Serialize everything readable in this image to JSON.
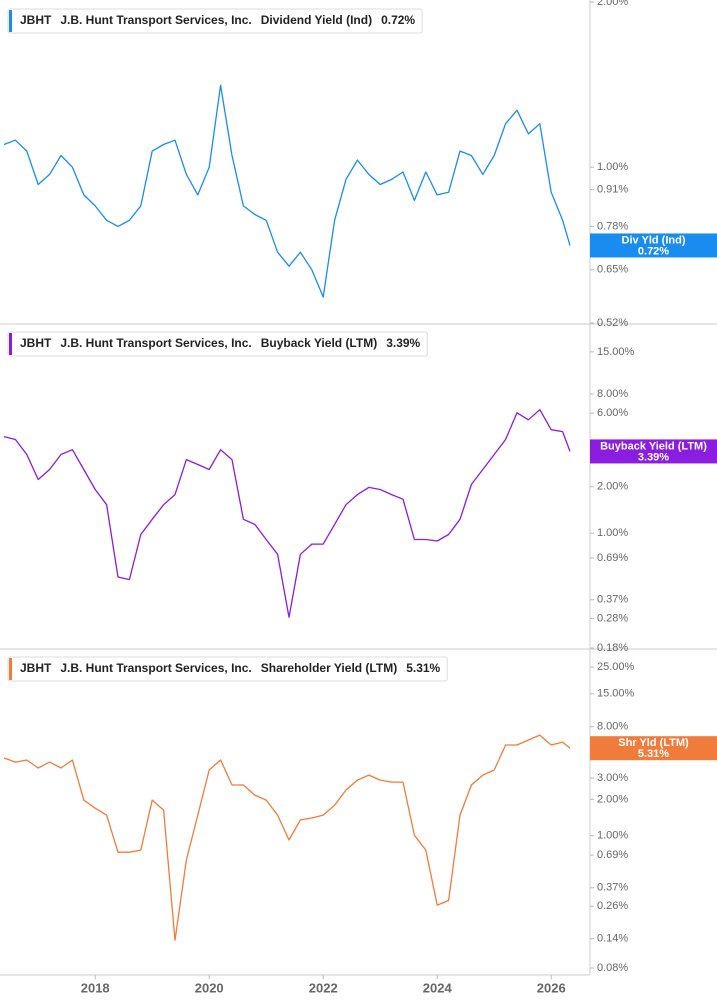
{
  "chart_data": [
    {
      "type": "line",
      "ticker": "JBHT",
      "company": "J.B. Hunt Transport Services, Inc.",
      "log_scale": true,
      "x": [
        2016.4,
        2016.6,
        2016.8,
        2017,
        2017.2,
        2017.4,
        2017.6,
        2017.8,
        2018,
        2018.2,
        2018.4,
        2018.6,
        2018.8,
        2019,
        2019.2,
        2019.4,
        2019.6,
        2019.8,
        2020,
        2020.2,
        2020.4,
        2020.6,
        2020.8,
        2021,
        2021.2,
        2021.4,
        2021.6,
        2021.8,
        2022,
        2022.2,
        2022.4,
        2022.6,
        2022.8,
        2023,
        2023.2,
        2023.4,
        2023.6,
        2023.8,
        2024,
        2024.2,
        2024.4,
        2024.6,
        2024.8,
        2025,
        2025.2,
        2025.4,
        2025.6,
        2025.8,
        2026,
        2026.2,
        2026.33
      ],
      "xlim": [
        2016.33,
        2026.68
      ],
      "ylim": [
        0.52,
        2.0
      ],
      "yticks": [
        {
          "value": 2,
          "label": "2.00%"
        },
        {
          "value": 1,
          "label": "1.00%"
        },
        {
          "value": 0.91,
          "label": "0.91%"
        },
        {
          "value": 0.78,
          "label": "0.78%"
        },
        {
          "value": 0.65,
          "label": "0.65%"
        },
        {
          "value": 0.52,
          "label": "0.52%"
        }
      ],
      "series": [
        {
          "name": "Dividend Yield (Ind)",
          "short_name": "Div Yld (Ind)",
          "color": "#1a8cf0",
          "last_value_label": "0.72%",
          "values": [
            1.1,
            1.12,
            1.07,
            0.93,
            0.97,
            1.05,
            1.0,
            0.89,
            0.85,
            0.8,
            0.78,
            0.8,
            0.85,
            1.07,
            1.1,
            1.12,
            0.97,
            0.89,
            1.0,
            1.41,
            1.05,
            0.85,
            0.82,
            0.8,
            0.7,
            0.66,
            0.7,
            0.65,
            0.58,
            0.8,
            0.95,
            1.03,
            0.97,
            0.93,
            0.95,
            0.98,
            0.87,
            0.98,
            0.89,
            0.9,
            1.07,
            1.05,
            0.97,
            1.05,
            1.2,
            1.27,
            1.15,
            1.2,
            0.9,
            0.8,
            0.72
          ]
        }
      ]
    },
    {
      "type": "line",
      "ticker": "JBHT",
      "company": "J.B. Hunt Transport Services, Inc.",
      "log_scale": true,
      "x": [
        2016.4,
        2016.6,
        2016.8,
        2017,
        2017.2,
        2017.4,
        2017.6,
        2017.8,
        2018,
        2018.2,
        2018.4,
        2018.6,
        2018.8,
        2019,
        2019.2,
        2019.4,
        2019.6,
        2019.8,
        2020,
        2020.2,
        2020.4,
        2020.6,
        2020.8,
        2021,
        2021.2,
        2021.4,
        2021.6,
        2021.8,
        2022,
        2022.2,
        2022.4,
        2022.6,
        2022.8,
        2023,
        2023.2,
        2023.4,
        2023.6,
        2023.8,
        2024,
        2024.2,
        2024.4,
        2024.6,
        2024.8,
        2025,
        2025.2,
        2025.4,
        2025.6,
        2025.8,
        2026,
        2026.2,
        2026.33
      ],
      "xlim": [
        2016.33,
        2026.68
      ],
      "ylim": [
        0.18,
        22.4
      ],
      "yticks": [
        {
          "value": 15,
          "label": "15.00%"
        },
        {
          "value": 8,
          "label": "8.00%"
        },
        {
          "value": 6,
          "label": "6.00%"
        },
        {
          "value": 2,
          "label": "2.00%"
        },
        {
          "value": 1,
          "label": "1.00%"
        },
        {
          "value": 0.69,
          "label": "0.69%"
        },
        {
          "value": 0.37,
          "label": "0.37%"
        },
        {
          "value": 0.28,
          "label": "0.28%"
        },
        {
          "value": 0.18,
          "label": "0.18%"
        }
      ],
      "series": [
        {
          "name": "Buyback Yield (LTM)",
          "short_name": "Buyback Yield (LTM)",
          "color": "#8a1de0",
          "last_value_label": "3.39%",
          "values": [
            4.23,
            4.05,
            3.24,
            2.23,
            2.59,
            3.24,
            3.48,
            2.59,
            1.92,
            1.53,
            0.52,
            0.5,
            0.98,
            1.23,
            1.53,
            1.78,
            3.0,
            2.79,
            2.59,
            3.48,
            3.0,
            1.23,
            1.14,
            0.91,
            0.73,
            0.285,
            0.73,
            0.85,
            0.85,
            1.14,
            1.53,
            1.78,
            1.98,
            1.92,
            1.78,
            1.66,
            0.91,
            0.91,
            0.89,
            0.98,
            1.23,
            2.07,
            2.59,
            3.24,
            4.05,
            6.04,
            5.44,
            6.32,
            4.69,
            4.56,
            3.39
          ]
        }
      ]
    },
    {
      "type": "line",
      "ticker": "JBHT",
      "company": "J.B. Hunt Transport Services, Inc.",
      "log_scale": true,
      "x": [
        2016.4,
        2016.6,
        2016.8,
        2017,
        2017.2,
        2017.4,
        2017.6,
        2017.8,
        2018,
        2018.2,
        2018.4,
        2018.6,
        2018.8,
        2019,
        2019.2,
        2019.4,
        2019.6,
        2019.8,
        2020,
        2020.2,
        2020.4,
        2020.6,
        2020.8,
        2021,
        2021.2,
        2021.4,
        2021.6,
        2021.8,
        2022,
        2022.2,
        2022.4,
        2022.6,
        2022.8,
        2023,
        2023.2,
        2023.4,
        2023.6,
        2023.8,
        2024,
        2024.2,
        2024.4,
        2024.6,
        2024.8,
        2025,
        2025.2,
        2025.4,
        2025.6,
        2025.8,
        2026,
        2026.2,
        2026.33
      ],
      "xlim": [
        2016.33,
        2026.68
      ],
      "xticks": [
        2018,
        2020,
        2022,
        2024,
        2026
      ],
      "ylim": [
        0.07,
        34.6
      ],
      "yticks": [
        {
          "value": 25,
          "label": "25.00%"
        },
        {
          "value": 15,
          "label": "15.00%"
        },
        {
          "value": 8,
          "label": "8.00%"
        },
        {
          "value": 3,
          "label": "3.00%"
        },
        {
          "value": 2,
          "label": "2.00%"
        },
        {
          "value": 1,
          "label": "1.00%"
        },
        {
          "value": 0.69,
          "label": "0.69%"
        },
        {
          "value": 0.37,
          "label": "0.37%"
        },
        {
          "value": 0.26,
          "label": "0.26%"
        },
        {
          "value": 0.14,
          "label": "0.14%"
        },
        {
          "value": 0.08,
          "label": "0.08%"
        }
      ],
      "series": [
        {
          "name": "Shareholder Yield (LTM)",
          "short_name": "Shr Yld (LTM)",
          "color": "#f07c3c",
          "last_value_label": "5.31%",
          "values": [
            4.4,
            4.07,
            4.24,
            3.64,
            4.07,
            3.64,
            4.24,
            1.97,
            1.69,
            1.48,
            0.73,
            0.73,
            0.76,
            1.97,
            1.63,
            0.136,
            0.63,
            1.48,
            3.5,
            4.24,
            2.63,
            2.63,
            2.17,
            1.97,
            1.48,
            0.92,
            1.35,
            1.4,
            1.48,
            1.79,
            2.39,
            2.89,
            3.18,
            2.89,
            2.78,
            2.78,
            1.01,
            0.76,
            0.266,
            0.29,
            1.48,
            2.63,
            3.18,
            3.5,
            5.64,
            5.64,
            6.21,
            6.82,
            5.64,
            5.97,
            5.31
          ]
        }
      ]
    }
  ]
}
